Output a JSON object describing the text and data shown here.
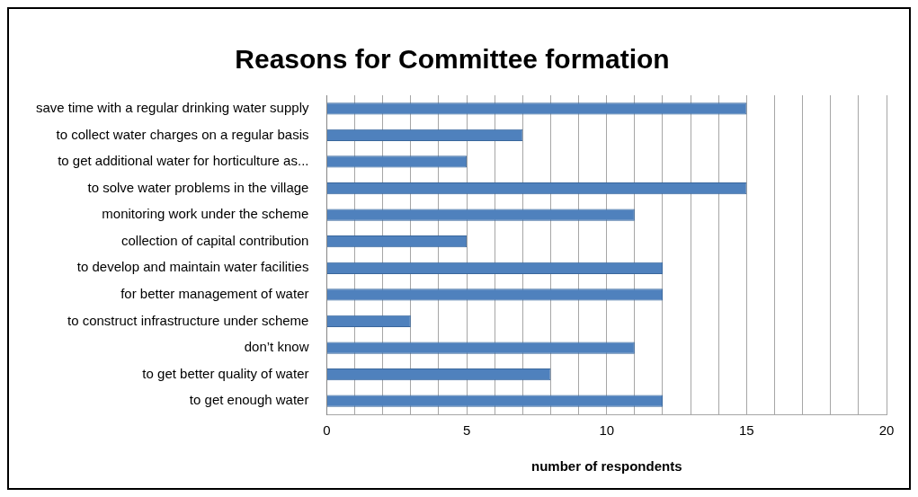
{
  "chart_data": {
    "type": "bar",
    "orientation": "horizontal",
    "title": "Reasons for Committee formation",
    "xlabel": "number of respondents",
    "categories": [
      "save time with a regular drinking water supply",
      "to collect water charges on a regular basis",
      "to get additional water for horticulture as...",
      "to solve water problems in the village",
      "monitoring work under the scheme",
      "collection of capital contribution",
      "to develop and maintain water facilities",
      "for better management of water",
      "to construct infrastructure under scheme",
      "don’t know",
      "to get better quality of water",
      "to get enough water"
    ],
    "values": [
      15,
      7,
      5,
      15,
      11,
      5,
      12,
      12,
      3,
      11,
      8,
      12
    ],
    "color": "#4f81bd",
    "xlim": [
      0,
      20
    ],
    "xticks": [
      0,
      {
        "value": 1,
        "label": null
      },
      {
        "value": 2,
        "label": null
      },
      {
        "value": 3,
        "label": null
      },
      {
        "value": 4,
        "label": null
      },
      5,
      {
        "value": 6,
        "label": null
      },
      {
        "value": 7,
        "label": null
      },
      {
        "value": 8,
        "label": null
      },
      {
        "value": 9,
        "label": null
      },
      10,
      {
        "value": 11,
        "label": null
      },
      {
        "value": 12,
        "label": null
      },
      {
        "value": 13,
        "label": null
      },
      {
        "value": 14,
        "label": null
      },
      15,
      {
        "value": 16,
        "label": null
      },
      {
        "value": 17,
        "label": null
      },
      {
        "value": 18,
        "label": null
      },
      {
        "value": 19,
        "label": null
      },
      20
    ],
    "grid": "x",
    "legend": false
  }
}
